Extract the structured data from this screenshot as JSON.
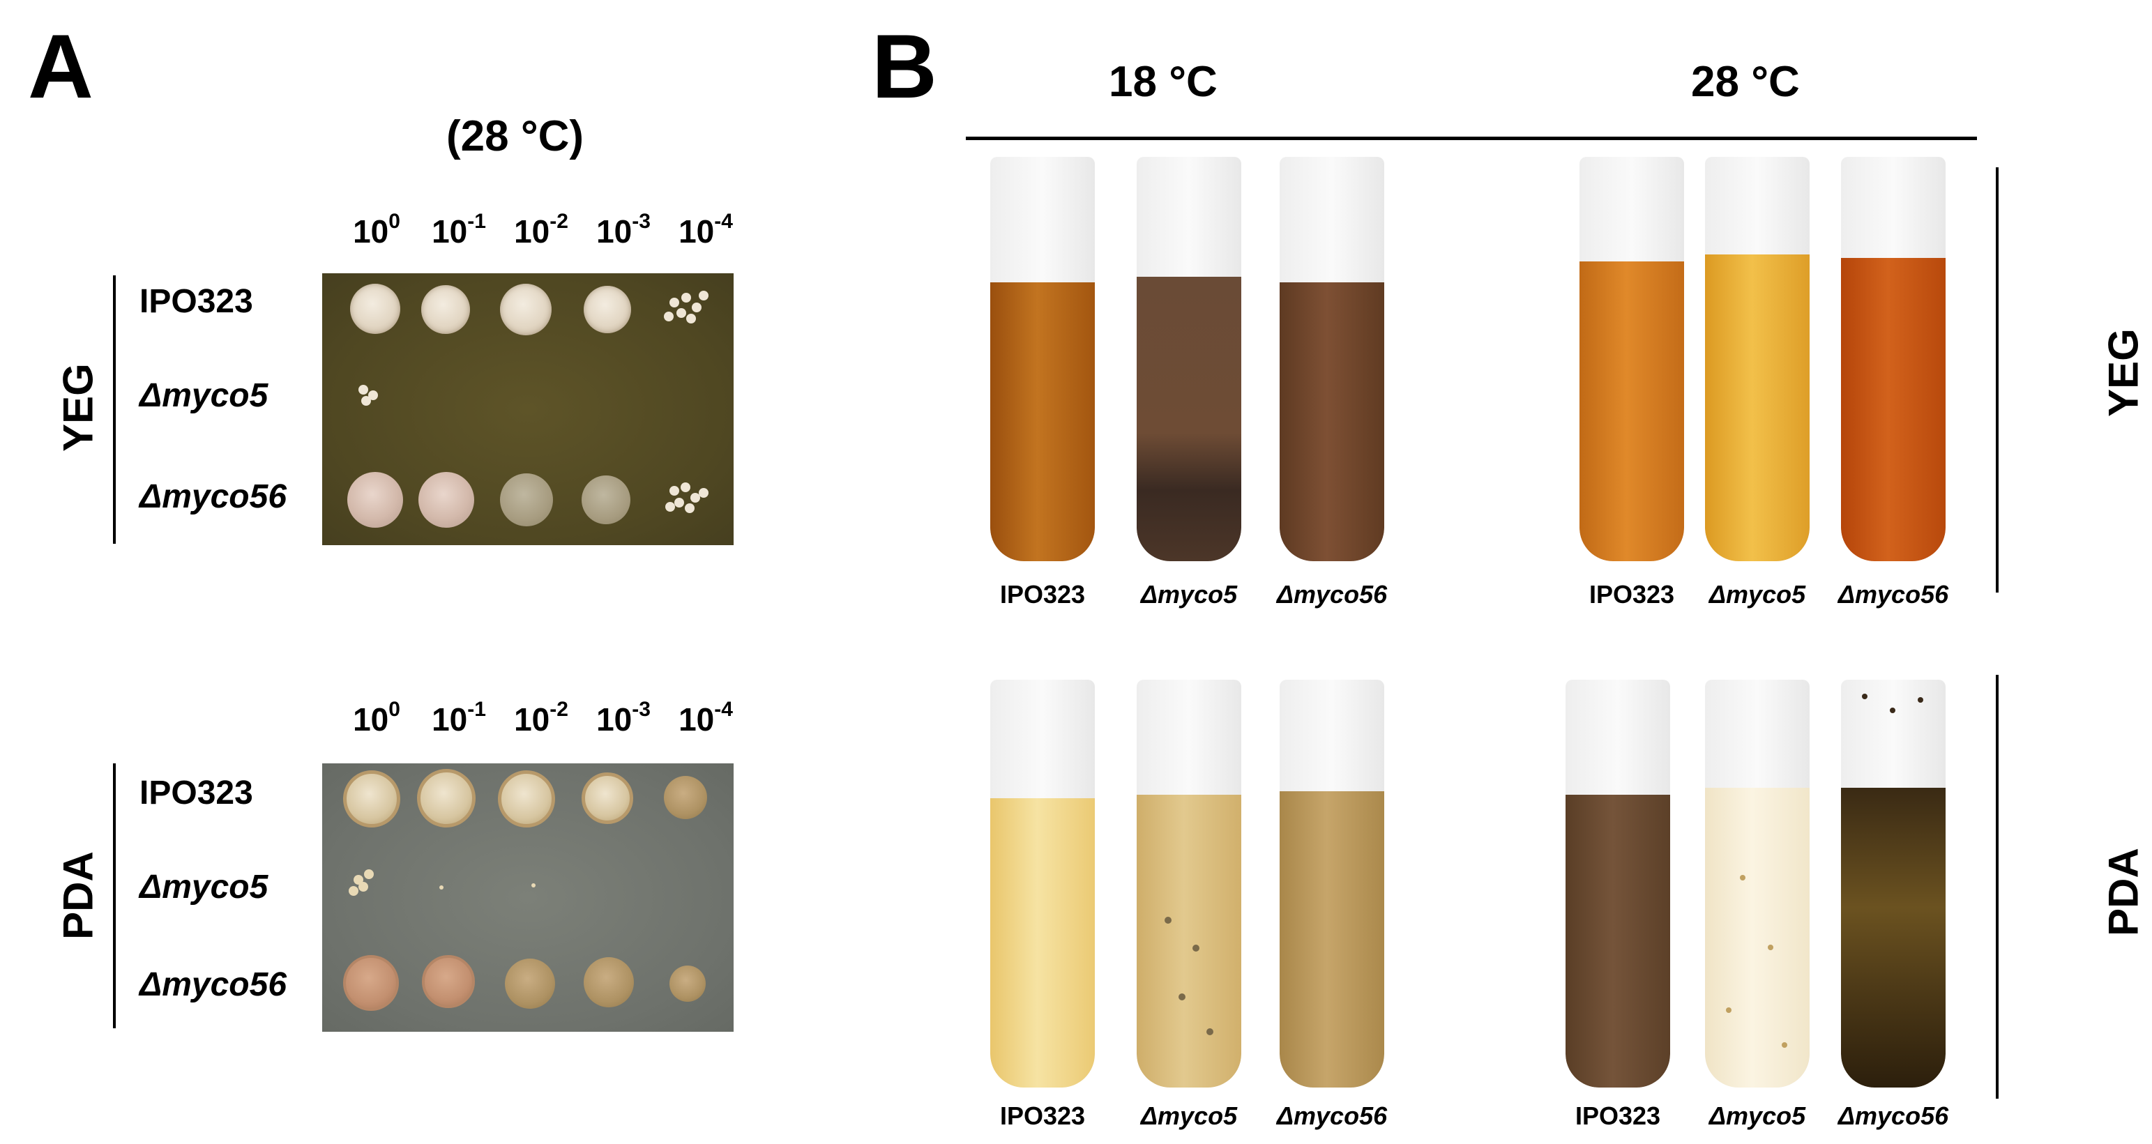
{
  "panel_a": {
    "label": "A",
    "temperature": "(28 °C)",
    "dilutions": [
      {
        "base": "10",
        "exp": "0"
      },
      {
        "base": "10",
        "exp": "-1"
      },
      {
        "base": "10",
        "exp": "-2"
      },
      {
        "base": "10",
        "exp": "-3"
      },
      {
        "base": "10",
        "exp": "-4"
      }
    ],
    "media": [
      "YEG",
      "PDA"
    ],
    "strains": [
      "IPO323",
      "Δmyco5",
      "Δmyco56"
    ]
  },
  "panel_b": {
    "label": "B",
    "temperatures": [
      "18 °C",
      "28 °C"
    ],
    "media": [
      "YEG",
      "PDA"
    ],
    "strains": [
      "IPO323",
      "Δmyco5",
      "Δmyco56"
    ]
  },
  "colors": {
    "yeg_plate": "#4f4722",
    "pda_plate": "#6e726c"
  }
}
